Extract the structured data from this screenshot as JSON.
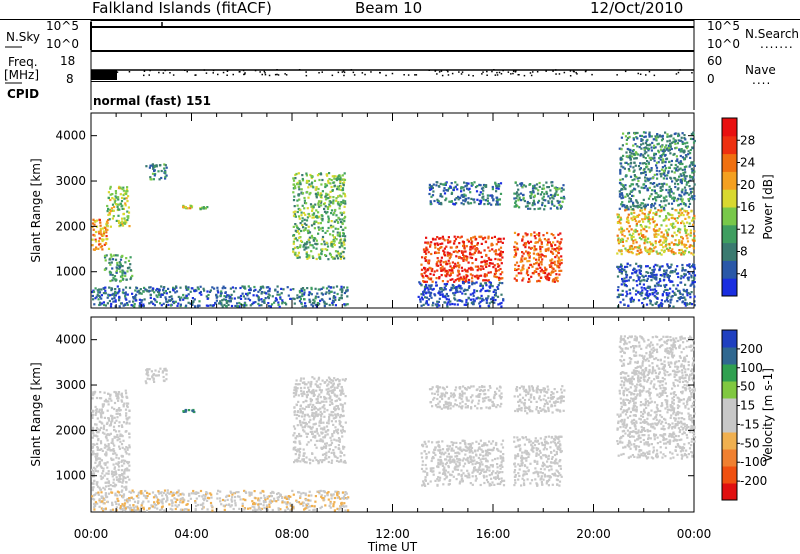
{
  "header": {
    "station": "Falkland Islands (fitACF)",
    "beam": "Beam 10",
    "date": "12/Oct/2010"
  },
  "panels": {
    "nsky": {
      "label": "N.Sky",
      "left_ticks": [
        "10^5",
        "10^0"
      ],
      "right_label": "N.Search",
      "right_ticks": [
        "10^5",
        "10^0"
      ],
      "right_marker": "......."
    },
    "freq": {
      "label_line1": "Freq.",
      "label_line2": "[MHz]",
      "left_ticks": [
        "18",
        "8"
      ],
      "right_label": "Nave",
      "right_ticks": [
        "60",
        "0"
      ],
      "right_marker": "...."
    },
    "cpid": {
      "label": "CPID",
      "value": "normal (fast) 151"
    }
  },
  "colors": {
    "power": [
      "#1a2ee0",
      "#2a58a8",
      "#3a7a70",
      "#3f9e60",
      "#78c84a",
      "#d8d830",
      "#f4a020",
      "#f07010",
      "#ee3010",
      "#e81010"
    ],
    "velocity": [
      "#e01010",
      "#f05010",
      "#f08030",
      "#f0b050",
      "#c8c8c8",
      "#c8c8c8",
      "#80c840",
      "#30a050",
      "#306890",
      "#2040c0"
    ]
  },
  "chart_data": [
    {
      "type": "heatmap",
      "parameter": "power",
      "ylabel": "Slant Range [km]",
      "colorbar_label": "Power [dB]",
      "colorbar_ticks": [
        "28",
        "24",
        "20",
        "16",
        "12",
        "8",
        "4"
      ],
      "clim": [
        0,
        30
      ],
      "ylim": [
        200,
        4500
      ],
      "yticks": [
        "4000",
        "3000",
        "2000",
        "1000"
      ],
      "ytick_values": [
        4000,
        3000,
        2000,
        1000
      ],
      "regions": [
        {
          "t0": 0.0,
          "t1": 0.7,
          "r0": 1500,
          "r1": 2200,
          "value": 20
        },
        {
          "t0": 0.6,
          "t1": 1.5,
          "r0": 2000,
          "r1": 2900,
          "value": 14
        },
        {
          "t0": 0.5,
          "t1": 1.6,
          "r0": 800,
          "r1": 1400,
          "value": 10
        },
        {
          "t0": 2.1,
          "t1": 3.0,
          "r0": 3050,
          "r1": 3400,
          "value": 8
        },
        {
          "t0": 3.6,
          "t1": 4.1,
          "r0": 2420,
          "r1": 2480,
          "value": 18
        },
        {
          "t0": 4.3,
          "t1": 4.6,
          "r0": 2400,
          "r1": 2460,
          "value": 12
        },
        {
          "t0": 8.0,
          "t1": 10.1,
          "r0": 1300,
          "r1": 3200,
          "value": 12
        },
        {
          "t0": 0.0,
          "t1": 10.2,
          "r0": 250,
          "r1": 700,
          "value": 6
        },
        {
          "t0": 13.1,
          "t1": 16.4,
          "r0": 800,
          "r1": 1800,
          "value": 26
        },
        {
          "t0": 13.4,
          "t1": 16.3,
          "r0": 2500,
          "r1": 3000,
          "value": 6
        },
        {
          "t0": 13.0,
          "t1": 16.4,
          "r0": 250,
          "r1": 800,
          "value": 4
        },
        {
          "t0": 16.8,
          "t1": 18.7,
          "r0": 800,
          "r1": 1900,
          "value": 24
        },
        {
          "t0": 16.8,
          "t1": 18.8,
          "r0": 2400,
          "r1": 3000,
          "value": 8
        },
        {
          "t0": 20.9,
          "t1": 24.0,
          "r0": 1400,
          "r1": 2400,
          "value": 18
        },
        {
          "t0": 21.0,
          "t1": 24.0,
          "r0": 2400,
          "r1": 4100,
          "value": 8
        },
        {
          "t0": 20.9,
          "t1": 24.0,
          "r0": 250,
          "r1": 1200,
          "value": 4
        }
      ]
    },
    {
      "type": "heatmap",
      "parameter": "velocity",
      "ylabel": "Slant Range [km]",
      "xlabel": "Time UT",
      "colorbar_label": "Velocity [m s-1]",
      "colorbar_ticks": [
        "200",
        "100",
        "50",
        "15",
        "-15",
        "-50",
        "-100",
        "-200"
      ],
      "clim": [
        -250,
        250
      ],
      "ylim": [
        200,
        4500
      ],
      "yticks": [
        "4000",
        "3000",
        "2000",
        "1000"
      ],
      "ytick_values": [
        4000,
        3000,
        2000,
        1000
      ],
      "xticks": [
        "00:00",
        "04:00",
        "08:00",
        "12:00",
        "16:00",
        "20:00",
        "00:00"
      ],
      "xlim": [
        0,
        24
      ],
      "regions": [
        {
          "t0": 0.0,
          "t1": 1.5,
          "r0": 700,
          "r1": 2900,
          "value": 0
        },
        {
          "t0": 2.1,
          "t1": 3.0,
          "r0": 3050,
          "r1": 3400,
          "value": 0
        },
        {
          "t0": 3.6,
          "t1": 4.1,
          "r0": 2420,
          "r1": 2480,
          "value": 150
        },
        {
          "t0": 8.0,
          "t1": 10.1,
          "r0": 1300,
          "r1": 3200,
          "value": 0
        },
        {
          "t0": 0.0,
          "t1": 10.2,
          "r0": 250,
          "r1": 700,
          "value": -40
        },
        {
          "t0": 13.1,
          "t1": 16.4,
          "r0": 800,
          "r1": 1800,
          "value": 0
        },
        {
          "t0": 13.4,
          "t1": 16.3,
          "r0": 2500,
          "r1": 3000,
          "value": -10
        },
        {
          "t0": 16.8,
          "t1": 18.7,
          "r0": 800,
          "r1": 1900,
          "value": 0
        },
        {
          "t0": 16.8,
          "t1": 18.8,
          "r0": 2400,
          "r1": 3000,
          "value": -20
        },
        {
          "t0": 20.9,
          "t1": 24.0,
          "r0": 1400,
          "r1": 2400,
          "value": -20
        },
        {
          "t0": 21.0,
          "t1": 24.0,
          "r0": 2400,
          "r1": 4100,
          "value": 0
        }
      ]
    }
  ]
}
